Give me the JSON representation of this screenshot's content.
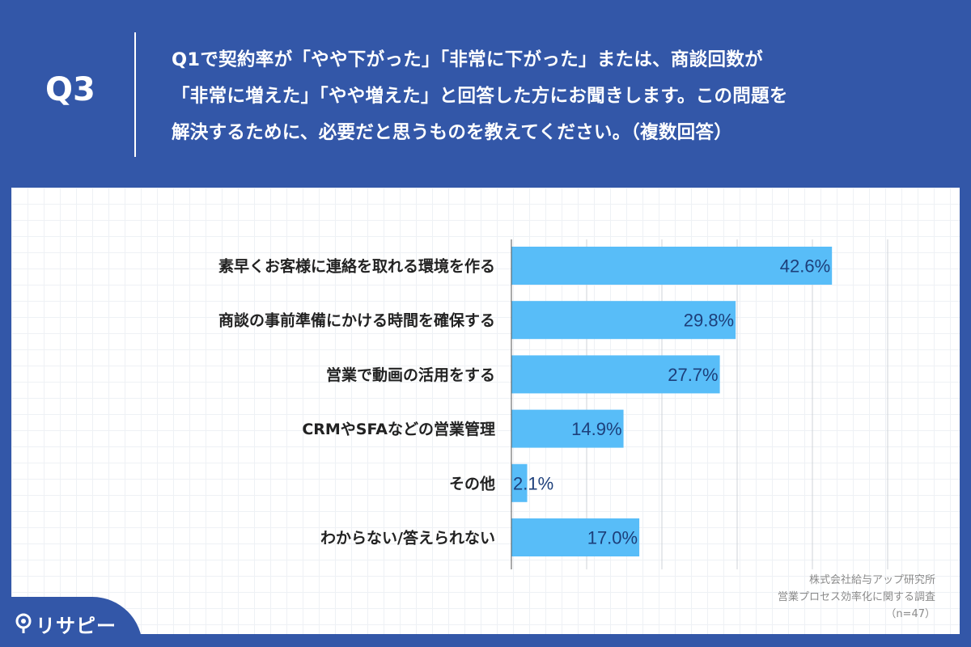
{
  "header": {
    "q_label": "Q3",
    "question_lines": [
      "Q1で契約率が「やや下がった」「非常に下がった」または、商談回数が",
      "「非常に増えた」「やや増えた」と回答した方にお聞きします。この問題を",
      "解決するために、必要だと思うものを教えてください。（複数回答）"
    ]
  },
  "chart_data": {
    "type": "bar",
    "orientation": "horizontal",
    "categories": [
      "素早くお客様に連絡を取れる環境を作る",
      "商談の事前準備にかける時間を確保する",
      "営業で動画の活用をする",
      "CRMやSFAなどの営業管理",
      "その他",
      "わからない/答えられない"
    ],
    "values": [
      42.6,
      29.8,
      27.7,
      14.9,
      2.1,
      17.0
    ],
    "value_labels": [
      "42.6%",
      "29.8%",
      "27.7%",
      "14.9%",
      "2.1%",
      "17.0%"
    ],
    "xlim": [
      0,
      50
    ],
    "grid": true,
    "bar_color": "#58bdf8",
    "label_color": "#1d3f7a"
  },
  "source": {
    "line1": "株式会社給与アップ研究所",
    "line2": "営業プロセス効率化に関する調査",
    "line3": "（n=47）"
  },
  "brand": {
    "name": "リサピー",
    "icon": "pin-icon"
  },
  "colors": {
    "background": "#3357a8",
    "panel": "#ffffff"
  }
}
